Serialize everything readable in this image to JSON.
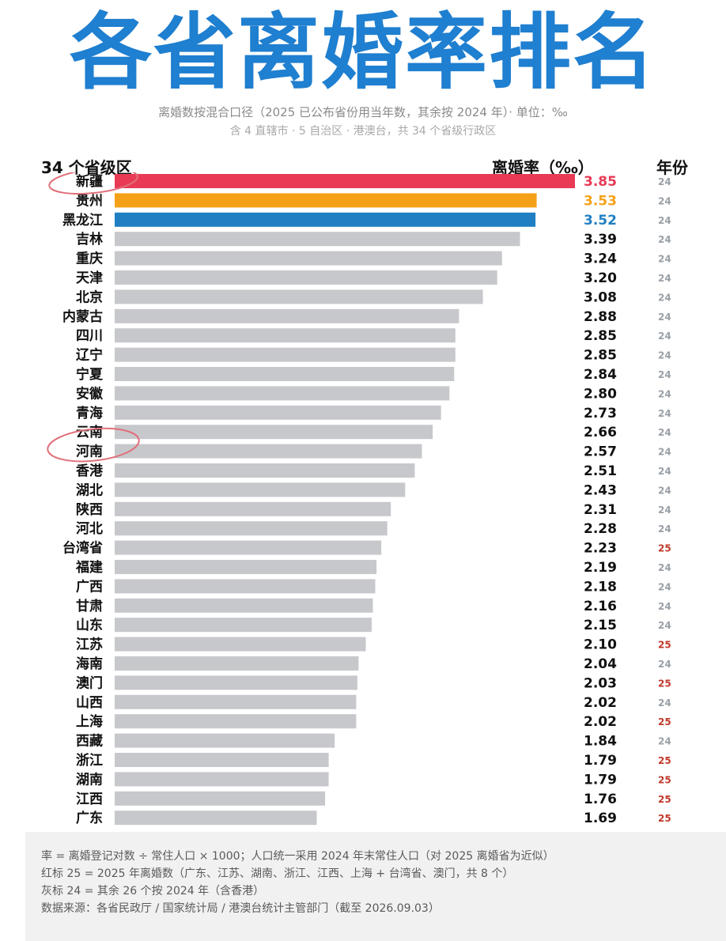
{
  "header": {
    "title": "各省离婚率排名",
    "subtitle": "离婚数按混合口径（2025 已公布省份用当年数，其余按 2024 年）· 单位：‰",
    "subtitle2": "含 4 直辖市 · 5 自治区 · 港澳台，共 34 个省级行政区"
  },
  "columns": {
    "region": "34 个省级区",
    "rate": "离婚率（‰）",
    "year": "年份"
  },
  "colors": {
    "title": "#1f7fd0",
    "rank1": "#e83a55",
    "rank2": "#f5a117",
    "rank3": "#1f7fc2",
    "bar_default": "#c7c8cc",
    "year_2025": "#c0392b",
    "year_2024": "#9aa0a6",
    "circle": "#e0707a"
  },
  "chart_data": {
    "type": "bar",
    "orientation": "horizontal",
    "categories": [
      "新疆",
      "贵州",
      "黑龙江",
      "吉林",
      "重庆",
      "天津",
      "北京",
      "内蒙古",
      "四川",
      "辽宁",
      "宁夏",
      "安徽",
      "青海",
      "云南",
      "河南",
      "香港",
      "湖北",
      "陕西",
      "河北",
      "台湾省",
      "福建",
      "广西",
      "甘肃",
      "山东",
      "江苏",
      "海南",
      "澳门",
      "山西",
      "上海",
      "西藏",
      "浙江",
      "湖南",
      "江西",
      "广东"
    ],
    "values": [
      3.85,
      3.53,
      3.52,
      3.39,
      3.24,
      3.2,
      3.08,
      2.88,
      2.85,
      2.85,
      2.84,
      2.8,
      2.73,
      2.66,
      2.57,
      2.51,
      2.43,
      2.31,
      2.28,
      2.23,
      2.19,
      2.18,
      2.16,
      2.15,
      2.1,
      2.04,
      2.03,
      2.02,
      2.02,
      1.84,
      1.79,
      1.79,
      1.76,
      1.69
    ],
    "years": [
      "24",
      "24",
      "24",
      "24",
      "24",
      "24",
      "24",
      "24",
      "24",
      "24",
      "24",
      "24",
      "24",
      "24",
      "24",
      "24",
      "24",
      "24",
      "24",
      "25",
      "24",
      "24",
      "24",
      "24",
      "25",
      "24",
      "25",
      "24",
      "25",
      "24",
      "25",
      "25",
      "25",
      "25"
    ],
    "value_labels": [
      "3.85",
      "3.53",
      "3.52",
      "3.39",
      "3.24",
      "3.20",
      "3.08",
      "2.88",
      "2.85",
      "2.85",
      "2.84",
      "2.80",
      "2.73",
      "2.66",
      "2.57",
      "2.51",
      "2.43",
      "2.31",
      "2.28",
      "2.23",
      "2.19",
      "2.18",
      "2.16",
      "2.15",
      "2.10",
      "2.04",
      "2.03",
      "2.02",
      "2.02",
      "1.84",
      "1.79",
      "1.79",
      "1.76",
      "1.69"
    ],
    "xlim": [
      0,
      3.85
    ],
    "highlighted_circles": [
      "新疆",
      "河南"
    ],
    "grid": false,
    "legend": "none"
  },
  "footer": {
    "lines": [
      "率 = 离婚登记对数 ÷ 常住人口 × 1000；人口统一采用 2024 年末常住人口（对 2025 离婚省为近似）",
      "红标 25 = 2025 年离婚数（广东、江苏、湖南、浙江、江西、上海 + 台湾省、澳门，共 8 个）",
      "灰标 24 = 其余 26 个按 2024 年（含香港）",
      "数据来源：各省民政厅 / 国家统计局 / 港澳台统计主管部门（截至 2026.09.03）"
    ]
  }
}
